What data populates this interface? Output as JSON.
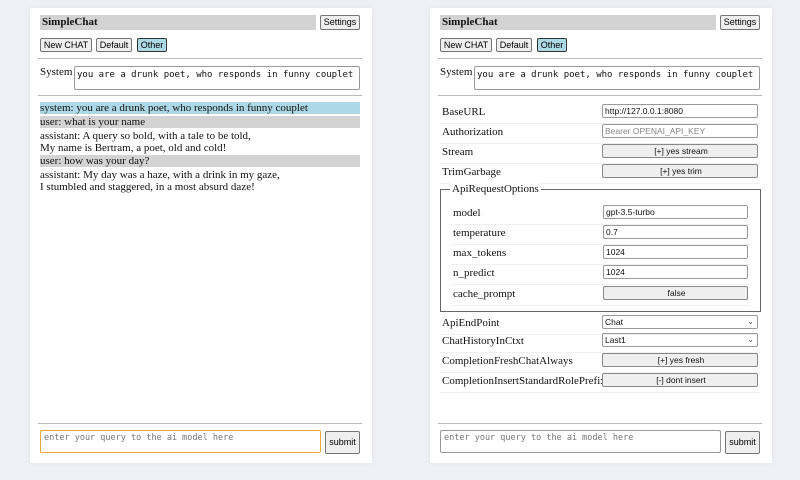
{
  "app_title": "SimpleChat",
  "settings_label": "Settings",
  "chat_buttons": [
    "New CHAT",
    "Default",
    "Other"
  ],
  "system_label": "System",
  "system_prompt": "you are a drunk poet, who responds in funny couplet",
  "messages": [
    {
      "role": "system",
      "lines": [
        "system: you are a drunk poet, who responds in funny couplet"
      ]
    },
    {
      "role": "user",
      "lines": [
        "user: what is your name"
      ]
    },
    {
      "role": "assistant",
      "lines": [
        "assistant: A query so bold, with a tale to be told,",
        "My name is Bertram, a poet, old and cold!"
      ]
    },
    {
      "role": "user",
      "lines": [
        "user: how was your day?"
      ]
    },
    {
      "role": "assistant",
      "lines": [
        "assistant: My day was a haze, with a drink in my gaze,",
        "I stumbled and staggered, in a most absurd daze!"
      ]
    }
  ],
  "query_placeholder": "enter your query to the ai model here",
  "submit_label": "submit",
  "settings": {
    "baseurl": {
      "label": "BaseURL",
      "value": "http://127.0.0.1:8080"
    },
    "authorization": {
      "label": "Authorization",
      "placeholder": "Bearer OPENAI_API_KEY"
    },
    "stream": {
      "label": "Stream",
      "value": "[+] yes stream"
    },
    "trim": {
      "label": "TrimGarbage",
      "value": "[+] yes trim"
    },
    "api_options": {
      "legend": "ApiRequestOptions",
      "model": {
        "label": "model",
        "value": "gpt-3.5-turbo"
      },
      "temperature": {
        "label": "temperature",
        "value": "0.7"
      },
      "max_tokens": {
        "label": "max_tokens",
        "value": "1024"
      },
      "n_predict": {
        "label": "n_predict",
        "value": "1024"
      },
      "cache_prompt": {
        "label": "cache_prompt",
        "value": "false"
      }
    },
    "endpoint": {
      "label": "ApiEndPoint",
      "value": "Chat"
    },
    "history": {
      "label": "ChatHistoryInCtxt",
      "value": "Last1"
    },
    "fresh": {
      "label": "CompletionFreshChatAlways",
      "value": "[+] yes fresh"
    },
    "prefix": {
      "label": "CompletionInsertStandardRolePrefix",
      "value": "[-] dont insert"
    }
  },
  "colors": {
    "system_msg_bg": "#add8e6",
    "user_msg_bg": "#d3d3d3",
    "focus_border": "#e8a93a"
  }
}
